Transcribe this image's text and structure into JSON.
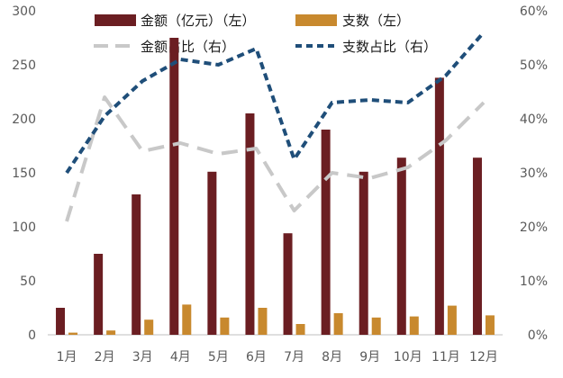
{
  "chart_data": {
    "type": "bar",
    "categories": [
      "1月",
      "2月",
      "3月",
      "4月",
      "5月",
      "6月",
      "7月",
      "8月",
      "9月",
      "10月",
      "11月",
      "12月"
    ],
    "left_axis": {
      "min": 0,
      "max": 300,
      "step": 50,
      "ticks": [
        "0",
        "50",
        "100",
        "150",
        "200",
        "250",
        "300"
      ]
    },
    "right_axis": {
      "min": 0,
      "max": 60,
      "step": 10,
      "ticks": [
        "0%",
        "10%",
        "20%",
        "30%",
        "40%",
        "50%",
        "60%"
      ]
    },
    "grid": false,
    "legend_position": "top",
    "series": [
      {
        "name": "金额（亿元）（左）",
        "kind": "bar",
        "axis": "left",
        "color": "#6b1e22",
        "values": [
          25,
          75,
          130,
          275,
          151,
          205,
          94,
          190,
          151,
          164,
          238,
          164
        ]
      },
      {
        "name": "支数（左）",
        "kind": "bar",
        "axis": "left",
        "color": "#c8892e",
        "values": [
          2,
          4,
          14,
          28,
          16,
          25,
          10,
          20,
          16,
          17,
          27,
          18
        ]
      },
      {
        "name": "金额占比（右）",
        "kind": "line",
        "axis": "right",
        "color": "#c8c8c8",
        "dash": "long",
        "values": [
          21,
          44,
          34,
          35.5,
          33.5,
          34.5,
          23,
          30,
          29,
          31,
          36,
          43
        ]
      },
      {
        "name": "支数占比（右）",
        "kind": "line",
        "axis": "right",
        "color": "#1f4e79",
        "dash": "short",
        "values": [
          30,
          40.5,
          47,
          51,
          50,
          53,
          32.5,
          43,
          43.5,
          43,
          48,
          56
        ]
      }
    ]
  }
}
